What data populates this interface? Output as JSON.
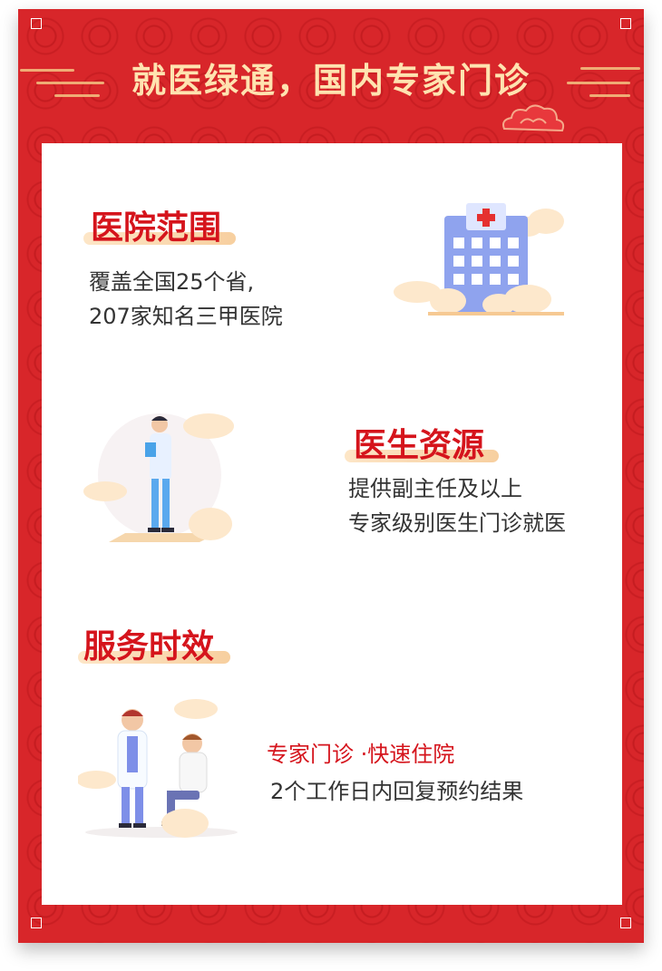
{
  "header": {
    "title": "就医绿通，国内专家门诊"
  },
  "sections": [
    {
      "title": "医院范围",
      "lines": [
        "覆盖全国25个省,",
        "207家知名三甲医院"
      ]
    },
    {
      "title": "医生资源",
      "lines": [
        "提供副主任及以上",
        "专家级别医生门诊就医"
      ]
    },
    {
      "title": "服务时效",
      "subtitle": "专家门诊 ·快速住院",
      "lines": [
        "2个工作日内回复预约结果"
      ]
    }
  ],
  "colors": {
    "frame_red": "#d8262a",
    "title_red": "#d5141c",
    "gold": "#ffe3b0"
  },
  "icons": [
    "hospital-illustration",
    "doctor-illustration",
    "doctor-patient-illustration",
    "cloud-ornament"
  ]
}
